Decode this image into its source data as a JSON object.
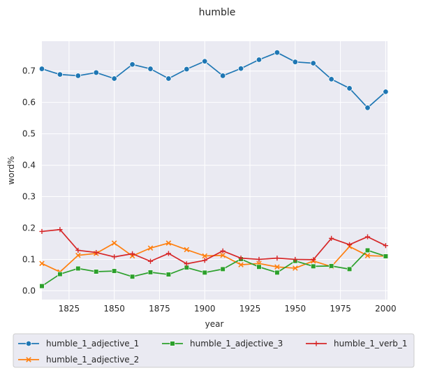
{
  "chart_data": {
    "type": "line",
    "title": "humble",
    "xlabel": "year",
    "ylabel": "word%",
    "xlim": [
      1810,
      2001
    ],
    "ylim": [
      -0.028,
      0.795
    ],
    "xticks": [
      1825,
      1850,
      1875,
      1900,
      1925,
      1950,
      1975,
      2000
    ],
    "yticks": [
      0.0,
      0.1,
      0.2,
      0.3,
      0.4,
      0.5,
      0.6,
      0.7
    ],
    "grid": true,
    "legend_position": "bottom",
    "x": [
      1810,
      1820,
      1830,
      1840,
      1850,
      1860,
      1870,
      1880,
      1890,
      1900,
      1910,
      1920,
      1930,
      1940,
      1950,
      1960,
      1970,
      1980,
      1990,
      2000
    ],
    "series": [
      {
        "name": "humble_1_adjective_1",
        "color": "#1f77b4",
        "marker": "circle",
        "values": [
          0.707,
          0.689,
          0.685,
          0.695,
          0.676,
          0.721,
          0.707,
          0.676,
          0.706,
          0.731,
          0.685,
          0.708,
          0.736,
          0.759,
          0.729,
          0.725,
          0.674,
          0.645,
          0.583,
          0.634
        ]
      },
      {
        "name": "humble_1_adjective_2",
        "color": "#ff7f0e",
        "marker": "x",
        "values": [
          0.087,
          0.06,
          0.113,
          0.119,
          0.152,
          0.111,
          0.136,
          0.152,
          0.131,
          0.111,
          0.113,
          0.083,
          0.087,
          0.076,
          0.072,
          0.095,
          0.077,
          0.141,
          0.112,
          0.11
        ]
      },
      {
        "name": "humble_1_adjective_3",
        "color": "#2ca02c",
        "marker": "square",
        "values": [
          0.015,
          0.053,
          0.071,
          0.061,
          0.063,
          0.045,
          0.059,
          0.052,
          0.074,
          0.058,
          0.069,
          0.101,
          0.076,
          0.058,
          0.095,
          0.078,
          0.079,
          0.069,
          0.129,
          0.11
        ]
      },
      {
        "name": "humble_1_verb_1",
        "color": "#d62728",
        "marker": "plus",
        "values": [
          0.189,
          0.195,
          0.129,
          0.122,
          0.108,
          0.118,
          0.094,
          0.119,
          0.086,
          0.097,
          0.127,
          0.104,
          0.1,
          0.104,
          0.1,
          0.099,
          0.167,
          0.147,
          0.172,
          0.144
        ]
      }
    ]
  }
}
